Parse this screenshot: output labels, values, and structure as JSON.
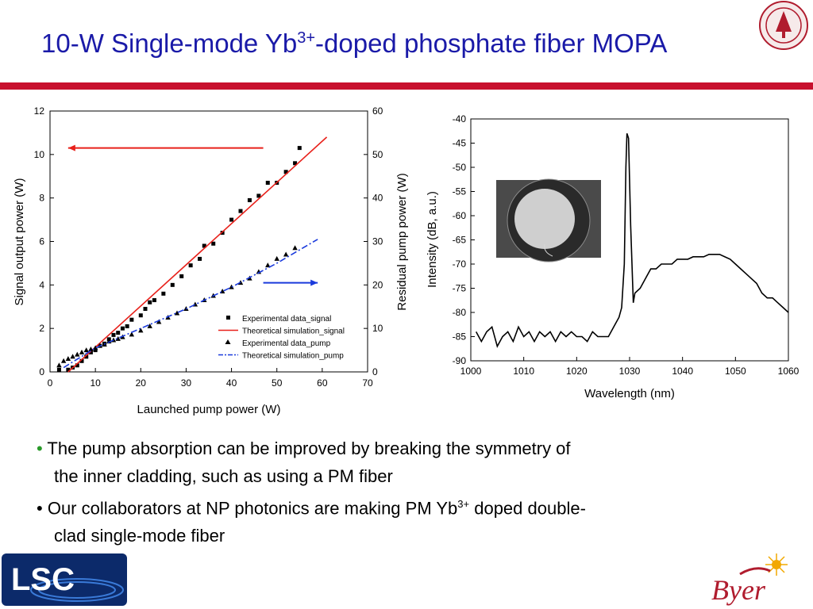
{
  "slide": {
    "title_pre": "10-W Single-mode Yb",
    "title_sup": "3+",
    "title_post": "-doped phosphate fiber MOPA",
    "bullets": [
      {
        "bullet": "•",
        "text": "The pump absorption can be improved by breaking the symmetry of",
        "cont": "the inner cladding, such as using a PM fiber"
      },
      {
        "bullet": "•",
        "text_pre": "Our collaborators at NP photonics are making PM Yb",
        "sup": "3+",
        "text_post": " doped double-",
        "cont": "clad single-mode fiber"
      }
    ],
    "logos": {
      "lsc_text": "LSC",
      "byer_text": "Byer"
    },
    "colors": {
      "title": "#1a1aa8",
      "rule": "#c8102e",
      "bullet_green": "#2a9a2a"
    }
  },
  "chart_data": [
    {
      "type": "scatter",
      "xlabel": "Launched pump power (W)",
      "ylabel": "Signal output power (W)",
      "y2label": "Residual pump power (W)",
      "xlim": [
        0,
        70
      ],
      "ylim": [
        0,
        12
      ],
      "y2lim": [
        0,
        60
      ],
      "xticks": [
        "0",
        "10",
        "20",
        "30",
        "40",
        "50",
        "60",
        "70"
      ],
      "yticks": [
        "0",
        "2",
        "4",
        "6",
        "8",
        "10",
        "12"
      ],
      "y2ticks": [
        "0",
        "10",
        "20",
        "30",
        "40",
        "50",
        "60"
      ],
      "legend_position": "bottom-right",
      "series": [
        {
          "name": "Experimental data_signal",
          "axis": "left",
          "marker": "square",
          "color": "#000000",
          "x": [
            2,
            4,
            5,
            6,
            7,
            8,
            9,
            10,
            11,
            12,
            13,
            14,
            15,
            16,
            17,
            18,
            20,
            21,
            22,
            23,
            25,
            27,
            29,
            31,
            33,
            34,
            36,
            38,
            40,
            42,
            44,
            46,
            48,
            50,
            52,
            54,
            55
          ],
          "y": [
            0.1,
            0.1,
            0.2,
            0.3,
            0.5,
            0.7,
            0.9,
            1.0,
            1.2,
            1.3,
            1.5,
            1.7,
            1.8,
            2.0,
            2.1,
            2.4,
            2.6,
            2.9,
            3.2,
            3.3,
            3.6,
            4.0,
            4.4,
            4.9,
            5.2,
            5.8,
            5.9,
            6.4,
            7.0,
            7.4,
            7.9,
            8.1,
            8.7,
            8.7,
            9.2,
            9.6,
            10.3
          ]
        },
        {
          "name": "Theoretical simulation_signal",
          "axis": "left",
          "style": "solid",
          "color": "#e8201a",
          "x": [
            4,
            61
          ],
          "y": [
            0,
            10.8
          ]
        },
        {
          "name": "Experimental data_pump",
          "axis": "right",
          "marker": "triangle",
          "color": "#000000",
          "x": [
            2,
            3,
            4,
            5,
            6,
            7,
            8,
            9,
            10,
            11,
            12,
            13,
            14,
            15,
            16,
            18,
            20,
            22,
            24,
            26,
            28,
            30,
            32,
            34,
            36,
            38,
            40,
            42,
            44,
            46,
            48,
            50,
            52,
            54
          ],
          "y": [
            1.5,
            2.5,
            3.0,
            3.5,
            4.0,
            4.5,
            5.0,
            5.2,
            5.5,
            6.0,
            6.3,
            7.0,
            7.3,
            7.6,
            8.0,
            8.6,
            9.5,
            10.5,
            11.5,
            12.5,
            13.5,
            14.5,
            15.5,
            16.5,
            17.5,
            18.5,
            19.5,
            20.5,
            21.5,
            23.0,
            24.5,
            26.0,
            27.0,
            28.5
          ]
        },
        {
          "name": "Theoretical simulation_pump",
          "axis": "right",
          "style": "dashdot",
          "color": "#1a3adc",
          "x": [
            3,
            10,
            20,
            30,
            40,
            50,
            59
          ],
          "y": [
            1.0,
            5.5,
            10.0,
            14.5,
            19.5,
            25.0,
            30.5
          ]
        }
      ],
      "arrows": [
        {
          "direction": "left",
          "color": "#e8201a",
          "x_from": 47,
          "x_to": 4,
          "y": 10.3,
          "axis": "left"
        },
        {
          "direction": "right",
          "color": "#1a3adc",
          "x_from": 47,
          "x_to": 59,
          "y": 20.5,
          "axis": "right"
        }
      ]
    },
    {
      "type": "line",
      "xlabel": "Wavelength (nm)",
      "ylabel": "Intensity (dB, a.u.)",
      "xlim": [
        1000,
        1060
      ],
      "ylim": [
        -90,
        -40
      ],
      "xticks": [
        "1000",
        "1010",
        "1020",
        "1030",
        "1040",
        "1050",
        "1060"
      ],
      "yticks": [
        "-40",
        "-45",
        "-50",
        "-55",
        "-60",
        "-65",
        "-70",
        "-75",
        "-80",
        "-85",
        "-90"
      ],
      "series": [
        {
          "color": "#000000",
          "x": [
            1001,
            1002,
            1003,
            1004,
            1005,
            1006,
            1007,
            1008,
            1009,
            1010,
            1011,
            1012,
            1013,
            1014,
            1015,
            1016,
            1017,
            1018,
            1019,
            1020,
            1021,
            1022,
            1023,
            1024,
            1025,
            1026,
            1027,
            1028,
            1028.5,
            1029,
            1029.3,
            1029.5,
            1029.8,
            1030.2,
            1030.7,
            1031,
            1032,
            1033,
            1034,
            1035,
            1036,
            1037,
            1038,
            1039,
            1040,
            1041,
            1042,
            1043,
            1044,
            1045,
            1046,
            1047,
            1048,
            1049,
            1050,
            1051,
            1052,
            1053,
            1054,
            1055,
            1056,
            1057,
            1058,
            1059,
            1060
          ],
          "y": [
            -84,
            -86,
            -84,
            -83,
            -87,
            -85,
            -84,
            -86,
            -83,
            -85,
            -84,
            -86,
            -84,
            -85,
            -84,
            -86,
            -84,
            -85,
            -84,
            -85,
            -85,
            -86,
            -84,
            -85,
            -85,
            -85,
            -83,
            -81,
            -79,
            -70,
            -50,
            -43,
            -44,
            -62,
            -78,
            -76,
            -75,
            -73,
            -71,
            -71,
            -70,
            -70,
            -70,
            -69,
            -69,
            -69,
            -68.5,
            -68.5,
            -68.5,
            -68,
            -68,
            -68,
            -68.5,
            -69,
            -70,
            -71,
            -72,
            -73,
            -74,
            -76,
            -77,
            -77,
            -78,
            -79,
            -80
          ]
        }
      ],
      "inset": "fiber cross-section image"
    }
  ]
}
